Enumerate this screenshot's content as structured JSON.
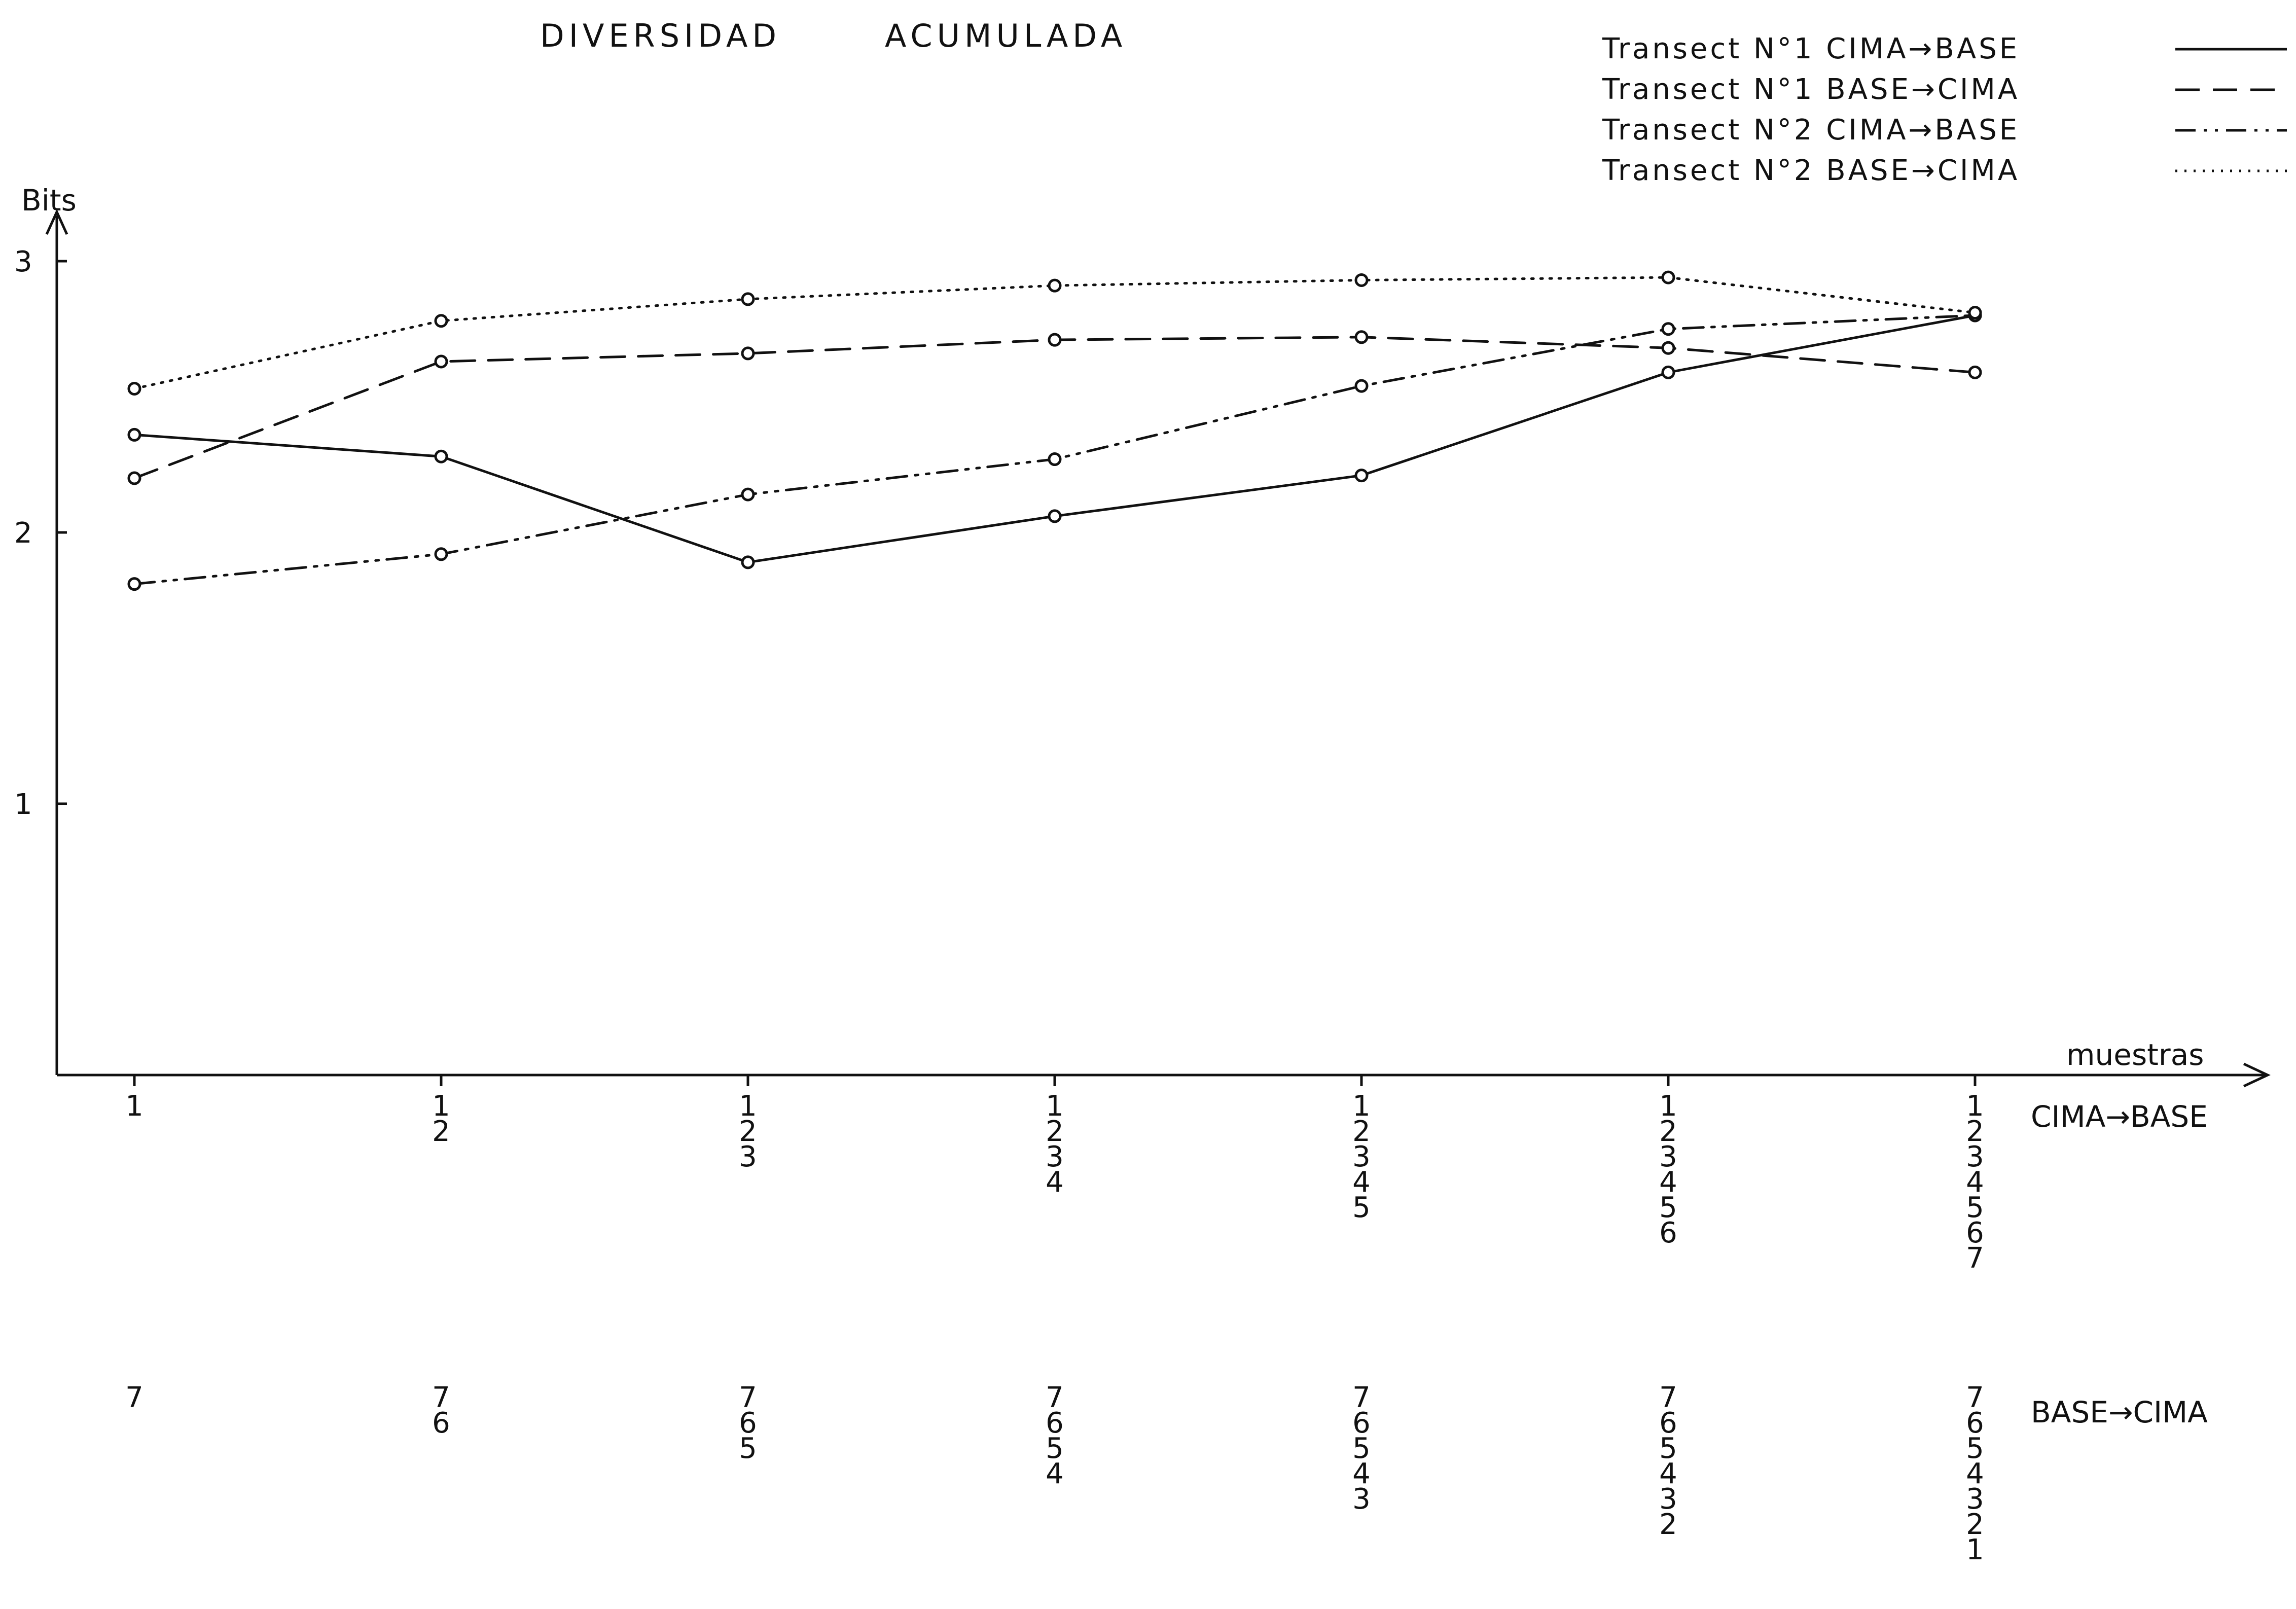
{
  "chart_data": {
    "type": "line",
    "title_left": "DIVERSIDAD",
    "title_right": "ACUMULADA",
    "ylabel": "Bits",
    "xlabel": "muestras",
    "ylim": [
      0,
      3
    ],
    "yticks": [
      "1",
      "2",
      "3"
    ],
    "x": [
      1,
      2,
      3,
      4,
      5,
      6,
      7
    ],
    "stack_cima_base_label": "CIMA→BASE",
    "stack_base_cima_label": "BASE→CIMA",
    "stacks_cima_base": [
      [
        "1"
      ],
      [
        "1",
        "2"
      ],
      [
        "1",
        "2",
        "3"
      ],
      [
        "1",
        "2",
        "3",
        "4"
      ],
      [
        "1",
        "2",
        "3",
        "4",
        "5"
      ],
      [
        "1",
        "2",
        "3",
        "4",
        "5",
        "6"
      ],
      [
        "1",
        "2",
        "3",
        "4",
        "5",
        "6",
        "7"
      ]
    ],
    "stacks_base_cima": [
      [
        "7"
      ],
      [
        "7",
        "6"
      ],
      [
        "7",
        "6",
        "5"
      ],
      [
        "7",
        "6",
        "5",
        "4"
      ],
      [
        "7",
        "6",
        "5",
        "4",
        "3"
      ],
      [
        "7",
        "6",
        "5",
        "4",
        "3",
        "2"
      ],
      [
        "7",
        "6",
        "5",
        "4",
        "3",
        "2",
        "1"
      ]
    ],
    "series": [
      {
        "name": "Transect N°1 CIMA→BASE",
        "dash": "solid",
        "values": [
          2.36,
          2.28,
          1.89,
          2.06,
          2.21,
          2.59,
          2.8
        ]
      },
      {
        "name": "Transect N°1 BASE→CIMA",
        "dash": "dashed",
        "values": [
          2.2,
          2.63,
          2.66,
          2.71,
          2.72,
          2.68,
          2.59
        ]
      },
      {
        "name": "Transect N°2 CIMA→BASE",
        "dash": "dash-dot",
        "values": [
          1.81,
          1.92,
          2.14,
          2.27,
          2.54,
          2.75,
          2.8
        ]
      },
      {
        "name": "Transect N°2 BASE→CIMA",
        "dash": "dotted",
        "values": [
          2.53,
          2.78,
          2.86,
          2.91,
          2.93,
          2.94,
          2.81
        ]
      }
    ],
    "grid": false,
    "legend": "top-right",
    "line_color": "#111111"
  }
}
